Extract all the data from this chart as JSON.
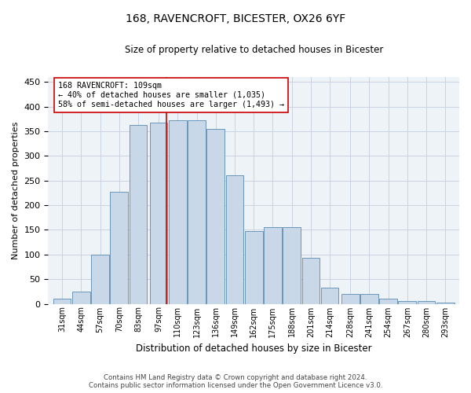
{
  "title": "168, RAVENCROFT, BICESTER, OX26 6YF",
  "subtitle": "Size of property relative to detached houses in Bicester",
  "xlabel": "Distribution of detached houses by size in Bicester",
  "ylabel": "Number of detached properties",
  "bar_color": "#c8d8e8",
  "bar_edge_color": "#5a8ab0",
  "background_color": "#ffffff",
  "plot_bg_color": "#eef3f8",
  "grid_color": "#c8d4e0",
  "annotation_line_color": "#cc0000",
  "annotation_property_value": 109,
  "annotation_text_line1": "168 RAVENCROFT: 109sqm",
  "annotation_text_line2": "← 40% of detached houses are smaller (1,035)",
  "annotation_text_line3": "58% of semi-detached houses are larger (1,493) →",
  "categories": [
    "31sqm",
    "44sqm",
    "57sqm",
    "70sqm",
    "83sqm",
    "97sqm",
    "110sqm",
    "123sqm",
    "136sqm",
    "149sqm",
    "162sqm",
    "175sqm",
    "188sqm",
    "201sqm",
    "214sqm",
    "228sqm",
    "241sqm",
    "254sqm",
    "267sqm",
    "280sqm",
    "293sqm"
  ],
  "bin_edges": [
    31,
    44,
    57,
    70,
    83,
    97,
    110,
    123,
    136,
    149,
    162,
    175,
    188,
    201,
    214,
    228,
    241,
    254,
    267,
    280,
    293
  ],
  "bar_heights": [
    10,
    25,
    100,
    228,
    363,
    367,
    373,
    373,
    355,
    260,
    147,
    155,
    155,
    94,
    32,
    20,
    20,
    10,
    5,
    5,
    3
  ],
  "ylim": [
    0,
    460
  ],
  "yticks": [
    0,
    50,
    100,
    150,
    200,
    250,
    300,
    350,
    400,
    450
  ],
  "footnote_line1": "Contains HM Land Registry data © Crown copyright and database right 2024.",
  "footnote_line2": "Contains public sector information licensed under the Open Government Licence v3.0."
}
